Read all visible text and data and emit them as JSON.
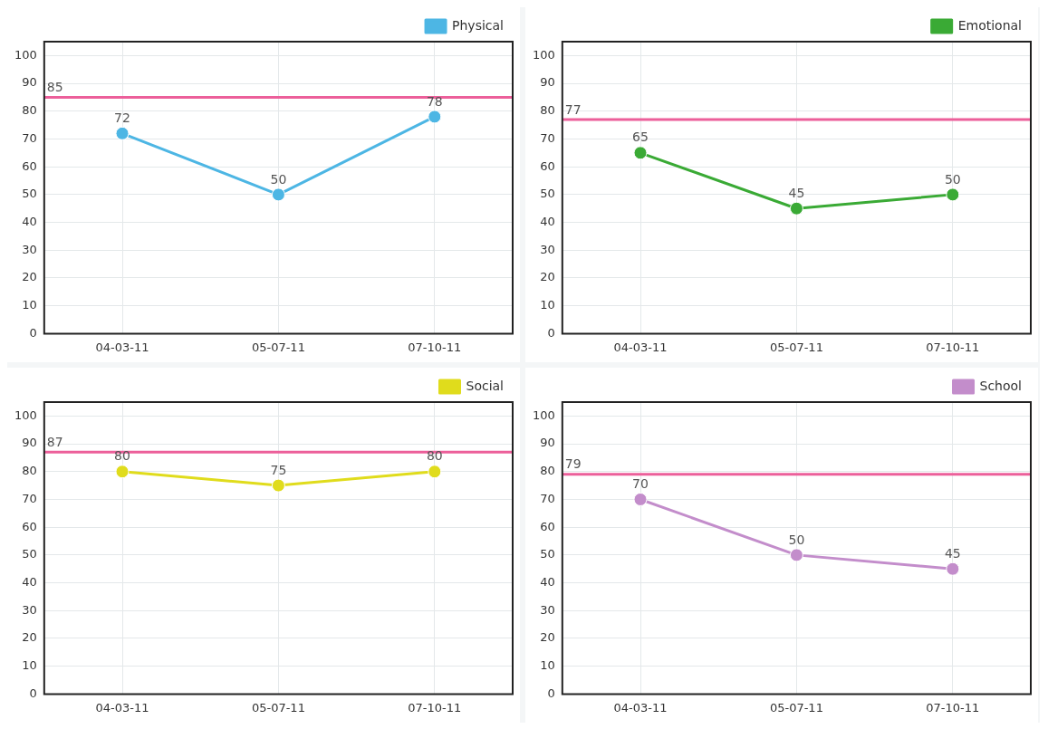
{
  "chart_data": [
    {
      "type": "line",
      "categories": [
        "04-03-11",
        "05-07-11",
        "07-10-11"
      ],
      "series": [
        {
          "name": "Physical",
          "color": "#4db6e4",
          "values": [
            72,
            50,
            78
          ]
        }
      ],
      "ylim": [
        0,
        105
      ],
      "yticks": [
        0,
        10,
        20,
        30,
        40,
        50,
        60,
        70,
        80,
        90,
        100
      ],
      "grid": true,
      "legend": "top right",
      "marker": "circle",
      "data_labels": true,
      "ref_lines": [
        {
          "axis": "y",
          "value": 85,
          "label": "85",
          "color": "#ec5f9a"
        }
      ]
    },
    {
      "type": "line",
      "categories": [
        "04-03-11",
        "05-07-11",
        "07-10-11"
      ],
      "series": [
        {
          "name": "Emotional",
          "color": "#3aaa35",
          "values": [
            65,
            45,
            50
          ]
        }
      ],
      "ylim": [
        0,
        105
      ],
      "yticks": [
        0,
        10,
        20,
        30,
        40,
        50,
        60,
        70,
        80,
        90,
        100
      ],
      "grid": true,
      "legend": "top right",
      "marker": "circle",
      "data_labels": true,
      "ref_lines": [
        {
          "axis": "y",
          "value": 77,
          "label": "77",
          "color": "#ec5f9a"
        }
      ]
    },
    {
      "type": "line",
      "categories": [
        "04-03-11",
        "05-07-11",
        "07-10-11"
      ],
      "series": [
        {
          "name": "Social",
          "color": "#e0dc1c",
          "values": [
            80,
            75,
            80
          ]
        }
      ],
      "ylim": [
        0,
        105
      ],
      "yticks": [
        0,
        10,
        20,
        30,
        40,
        50,
        60,
        70,
        80,
        90,
        100
      ],
      "grid": true,
      "legend": "top right",
      "marker": "circle",
      "data_labels": true,
      "ref_lines": [
        {
          "axis": "y",
          "value": 87,
          "label": "87",
          "color": "#ec5f9a"
        }
      ]
    },
    {
      "type": "line",
      "categories": [
        "04-03-11",
        "05-07-11",
        "07-10-11"
      ],
      "series": [
        {
          "name": "School",
          "color": "#c38dcb",
          "values": [
            70,
            50,
            45
          ]
        }
      ],
      "ylim": [
        0,
        105
      ],
      "yticks": [
        0,
        10,
        20,
        30,
        40,
        50,
        60,
        70,
        80,
        90,
        100
      ],
      "grid": true,
      "legend": "top right",
      "marker": "circle",
      "data_labels": true,
      "ref_lines": [
        {
          "axis": "y",
          "value": 79,
          "label": "79",
          "color": "#ec5f9a"
        }
      ]
    }
  ]
}
